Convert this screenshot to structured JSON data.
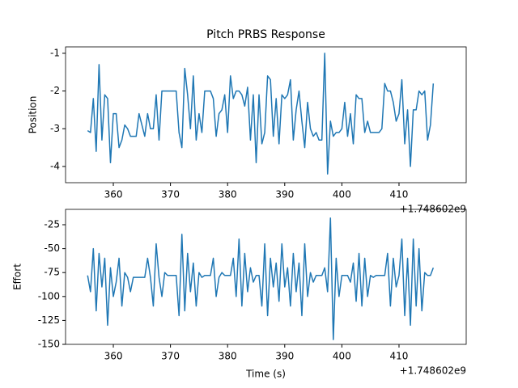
{
  "chart_data": [
    {
      "type": "line",
      "title": "Pitch PRBS Response",
      "y_label": "Position",
      "x_offset_label": "+1.748602e9",
      "x": [
        355.5,
        356,
        356.5,
        357,
        357.5,
        358,
        358.5,
        359,
        359.5,
        360,
        360.5,
        361,
        361.5,
        362,
        362.5,
        363,
        363.5,
        364,
        364.5,
        365,
        365.5,
        366,
        366.5,
        367,
        367.5,
        368,
        368.5,
        369,
        369.5,
        370,
        370.5,
        371,
        371.5,
        372,
        372.5,
        373,
        373.5,
        374,
        374.5,
        375,
        375.5,
        376,
        376.5,
        377,
        377.5,
        378,
        378.5,
        379,
        379.5,
        380,
        380.5,
        381,
        381.5,
        382,
        382.5,
        383,
        383.5,
        384,
        384.5,
        385,
        385.5,
        386,
        386.5,
        387,
        387.5,
        388,
        388.5,
        389,
        389.5,
        390,
        390.5,
        391,
        391.5,
        392,
        392.5,
        393,
        393.5,
        394,
        394.5,
        395,
        395.5,
        396,
        396.5,
        397,
        397.5,
        398,
        398.5,
        399,
        399.5,
        400,
        400.5,
        401,
        401.5,
        402,
        402.5,
        403,
        403.5,
        404,
        404.5,
        405,
        405.5,
        406,
        406.5,
        407,
        407.5,
        408,
        408.5,
        409,
        409.5,
        410,
        410.5,
        411,
        411.5,
        412,
        412.5,
        413,
        413.5,
        414,
        414.5,
        415,
        415.5,
        416
      ],
      "series": [
        {
          "color": "#1f77b4",
          "values": [
            -3.05,
            -3.1,
            -2.2,
            -3.6,
            -1.3,
            -3.3,
            -2.1,
            -2.2,
            -3.9,
            -2.6,
            -2.6,
            -3.5,
            -3.3,
            -2.9,
            -3.0,
            -3.2,
            -3.2,
            -3.2,
            -2.6,
            -2.9,
            -3.2,
            -2.6,
            -3.0,
            -3.0,
            -2.1,
            -3.3,
            -2.0,
            -2.0,
            -2.0,
            -2.0,
            -2.0,
            -2.0,
            -3.1,
            -3.5,
            -1.4,
            -2.1,
            -3.0,
            -1.6,
            -3.3,
            -2.6,
            -3.1,
            -2.0,
            -2.0,
            -2.0,
            -2.2,
            -3.2,
            -2.6,
            -2.5,
            -2.1,
            -3.1,
            -1.6,
            -2.2,
            -2.0,
            -2.0,
            -2.1,
            -2.4,
            -1.9,
            -3.3,
            -2.1,
            -3.9,
            -2.1,
            -3.4,
            -3.1,
            -1.6,
            -1.7,
            -3.2,
            -2.2,
            -3.4,
            -2.1,
            -2.2,
            -2.1,
            -1.7,
            -3.3,
            -2.5,
            -2.0,
            -2.8,
            -3.5,
            -2.3,
            -3.0,
            -3.2,
            -3.1,
            -3.3,
            -3.3,
            -1.0,
            -4.2,
            -2.8,
            -3.2,
            -3.1,
            -3.1,
            -3.0,
            -2.3,
            -3.2,
            -2.6,
            -3.4,
            -2.1,
            -2.2,
            -2.2,
            -3.1,
            -2.8,
            -3.1,
            -3.1,
            -3.1,
            -3.1,
            -3.0,
            -1.8,
            -2.0,
            -2.0,
            -2.3,
            -2.8,
            -2.6,
            -1.7,
            -3.4,
            -2.5,
            -4.0,
            -2.5,
            -2.5,
            -2.0,
            -2.1,
            -2.0,
            -3.3,
            -2.9,
            -1.8
          ]
        }
      ],
      "xlim": [
        351.64,
        421.76
      ],
      "xticks": [
        360,
        370,
        380,
        390,
        400,
        410
      ],
      "ylim": [
        -4.43,
        -0.83
      ],
      "yticks": [
        -4,
        -3,
        -2,
        -1
      ]
    },
    {
      "type": "line",
      "x_label": "Time (s)",
      "y_label": "Effort",
      "x_offset_label": "+1.748602e9",
      "x": [
        355.5,
        356,
        356.5,
        357,
        357.5,
        358,
        358.5,
        359,
        359.5,
        360,
        360.5,
        361,
        361.5,
        362,
        362.5,
        363,
        363.5,
        364,
        364.5,
        365,
        365.5,
        366,
        366.5,
        367,
        367.5,
        368,
        368.5,
        369,
        369.5,
        370,
        370.5,
        371,
        371.5,
        372,
        372.5,
        373,
        373.5,
        374,
        374.5,
        375,
        375.5,
        376,
        376.5,
        377,
        377.5,
        378,
        378.5,
        379,
        379.5,
        380,
        380.5,
        381,
        381.5,
        382,
        382.5,
        383,
        383.5,
        384,
        384.5,
        385,
        385.5,
        386,
        386.5,
        387,
        387.5,
        388,
        388.5,
        389,
        389.5,
        390,
        390.5,
        391,
        391.5,
        392,
        392.5,
        393,
        393.5,
        394,
        394.5,
        395,
        395.5,
        396,
        396.5,
        397,
        397.5,
        398,
        398.5,
        399,
        399.5,
        400,
        400.5,
        401,
        401.5,
        402,
        402.5,
        403,
        403.5,
        404,
        404.5,
        405,
        405.5,
        406,
        406.5,
        407,
        407.5,
        408,
        408.5,
        409,
        409.5,
        410,
        410.5,
        411,
        411.5,
        412,
        412.5,
        413,
        413.5,
        414,
        414.5,
        415,
        415.5,
        416
      ],
      "series": [
        {
          "color": "#1f77b4",
          "values": [
            -78,
            -95,
            -50,
            -115,
            -55,
            -90,
            -60,
            -130,
            -70,
            -100,
            -85,
            -60,
            -110,
            -75,
            -80,
            -95,
            -80,
            -80,
            -80,
            -80,
            -80,
            -60,
            -80,
            -110,
            -45,
            -80,
            -100,
            -75,
            -78,
            -78,
            -78,
            -78,
            -120,
            -35,
            -115,
            -55,
            -95,
            -65,
            -110,
            -75,
            -80,
            -78,
            -78,
            -78,
            -60,
            -100,
            -80,
            -75,
            -78,
            -78,
            -78,
            -60,
            -100,
            -40,
            -110,
            -55,
            -95,
            -70,
            -85,
            -78,
            -78,
            -110,
            -45,
            -120,
            -60,
            -90,
            -65,
            -105,
            -45,
            -90,
            -70,
            -110,
            -55,
            -95,
            -65,
            -120,
            -45,
            -100,
            -75,
            -85,
            -78,
            -78,
            -78,
            -70,
            -95,
            -18,
            -145,
            -60,
            -100,
            -78,
            -78,
            -78,
            -85,
            -65,
            -105,
            -55,
            -110,
            -60,
            -100,
            -78,
            -80,
            -78,
            -78,
            -78,
            -78,
            -55,
            -110,
            -60,
            -90,
            -78,
            -40,
            -120,
            -60,
            -130,
            -40,
            -110,
            -50,
            -115,
            -75,
            -78,
            -78,
            -70
          ]
        }
      ],
      "xlim": [
        351.64,
        421.76
      ],
      "xticks": [
        360,
        370,
        380,
        390,
        400,
        410
      ],
      "ylim": [
        -150,
        -8.95
      ],
      "yticks": [
        -150,
        -125,
        -100,
        -75,
        -50,
        -25
      ]
    }
  ]
}
